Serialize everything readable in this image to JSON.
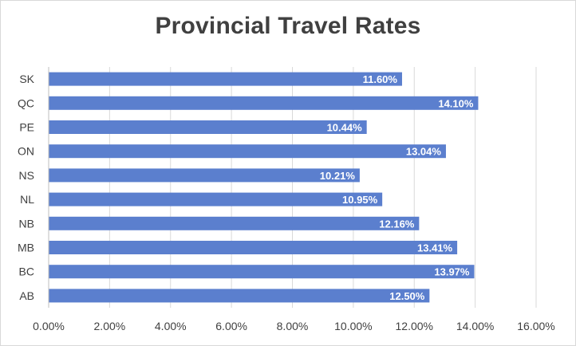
{
  "chart_data": {
    "type": "bar",
    "orientation": "horizontal",
    "title": "Provincial Travel Rates",
    "categories": [
      "AB",
      "BC",
      "MB",
      "NB",
      "NL",
      "NS",
      "ON",
      "PE",
      "QC",
      "SK"
    ],
    "values": [
      12.5,
      13.97,
      13.41,
      12.16,
      10.95,
      10.21,
      13.04,
      10.44,
      14.1,
      11.6
    ],
    "data_labels": [
      "12.50%",
      "13.97%",
      "13.41%",
      "12.16%",
      "10.95%",
      "10.21%",
      "13.04%",
      "10.44%",
      "14.10%",
      "11.60%"
    ],
    "x_ticks": [
      0,
      2,
      4,
      6,
      8,
      10,
      12,
      14,
      16
    ],
    "x_tick_labels": [
      "0.00%",
      "2.00%",
      "4.00%",
      "6.00%",
      "8.00%",
      "10.00%",
      "12.00%",
      "14.00%",
      "16.00%"
    ],
    "xlim": [
      0,
      16
    ],
    "xlabel": "",
    "ylabel": "",
    "grid": true,
    "legend": "none",
    "bar_color": "#5b7fce",
    "grid_color": "#d9d9d9",
    "text_color": "#404040"
  }
}
